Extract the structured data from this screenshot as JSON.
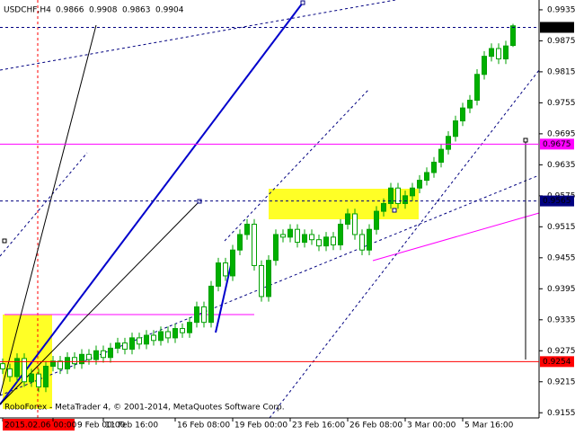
{
  "chart_data": {
    "type": "candlestick",
    "symbol": "USDCHF,H4",
    "header_ohlc": [
      0.9866,
      0.9908,
      0.9863,
      0.9904
    ],
    "footer": "RoboForex - MetaTrader 4, © 2001-2014, MetaQuotes Software Corp.",
    "categories": [
      "2015.02.06 00:00",
      null,
      null,
      null,
      null,
      null,
      null,
      "9 Feb 00:00",
      null,
      null,
      null,
      null,
      null,
      null,
      "11 Feb 16:00",
      null,
      null,
      null,
      null,
      null,
      null,
      null,
      null,
      null,
      "16 Feb 08:00",
      null,
      null,
      null,
      null,
      null,
      null,
      null,
      "19 Feb 00:00",
      null,
      null,
      null,
      null,
      null,
      null,
      null,
      "23 Feb 16:00",
      null,
      null,
      null,
      null,
      null,
      null,
      null,
      "26 Feb 08:00",
      null,
      null,
      null,
      null,
      null,
      null,
      null,
      "3 Mar 00:00",
      null,
      null,
      null,
      null,
      null,
      null,
      null,
      "5 Mar 16:00",
      null,
      null,
      null,
      null,
      null,
      null,
      null
    ],
    "open": [
      0.925,
      0.924,
      0.9225,
      0.926,
      0.9215,
      0.923,
      0.9205,
      0.9245,
      0.9255,
      0.924,
      0.9262,
      0.925,
      0.9268,
      0.9258,
      0.9275,
      0.9262,
      0.928,
      0.929,
      0.9278,
      0.93,
      0.9288,
      0.9305,
      0.9295,
      0.9312,
      0.93,
      0.9318,
      0.931,
      0.933,
      0.936,
      0.933,
      0.94,
      0.9445,
      0.942,
      0.947,
      0.95,
      0.952,
      0.944,
      0.938,
      0.945,
      0.95,
      0.9495,
      0.951,
      0.9485,
      0.95,
      0.949,
      0.9478,
      0.9495,
      0.948,
      0.952,
      0.954,
      0.95,
      0.947,
      0.951,
      0.9545,
      0.956,
      0.959,
      0.956,
      0.9575,
      0.959,
      0.9605,
      0.962,
      0.964,
      0.9665,
      0.969,
      0.972,
      0.9745,
      0.976,
      0.981,
      0.9845,
      0.986,
      0.984,
      0.9866
    ],
    "high": [
      0.926,
      0.925,
      0.927,
      0.927,
      0.924,
      0.924,
      0.9255,
      0.9265,
      0.9265,
      0.9272,
      0.9272,
      0.9278,
      0.9278,
      0.9285,
      0.9285,
      0.929,
      0.93,
      0.93,
      0.931,
      0.931,
      0.9315,
      0.9315,
      0.9322,
      0.9322,
      0.9328,
      0.9328,
      0.934,
      0.937,
      0.937,
      0.941,
      0.9455,
      0.9455,
      0.948,
      0.951,
      0.953,
      0.953,
      0.945,
      0.946,
      0.951,
      0.951,
      0.952,
      0.952,
      0.951,
      0.951,
      0.95,
      0.9505,
      0.9505,
      0.953,
      0.955,
      0.955,
      0.951,
      0.952,
      0.9555,
      0.957,
      0.96,
      0.96,
      0.9585,
      0.96,
      0.9615,
      0.963,
      0.965,
      0.9675,
      0.97,
      0.973,
      0.9755,
      0.977,
      0.982,
      0.9855,
      0.987,
      0.987,
      0.9875,
      0.9908
    ],
    "low": [
      0.923,
      0.9215,
      0.9215,
      0.9205,
      0.9205,
      0.9195,
      0.9195,
      0.9235,
      0.923,
      0.923,
      0.924,
      0.924,
      0.9248,
      0.9248,
      0.9252,
      0.9252,
      0.927,
      0.9268,
      0.9268,
      0.9278,
      0.9278,
      0.9285,
      0.9285,
      0.929,
      0.929,
      0.93,
      0.93,
      0.932,
      0.932,
      0.932,
      0.939,
      0.941,
      0.941,
      0.946,
      0.949,
      0.943,
      0.937,
      0.937,
      0.944,
      0.9485,
      0.9485,
      0.9475,
      0.9475,
      0.948,
      0.9468,
      0.9468,
      0.947,
      0.947,
      0.951,
      0.949,
      0.946,
      0.946,
      0.95,
      0.9535,
      0.955,
      0.955,
      0.955,
      0.9565,
      0.958,
      0.9595,
      0.961,
      0.963,
      0.9655,
      0.968,
      0.971,
      0.9735,
      0.975,
      0.98,
      0.9835,
      0.983,
      0.983,
      0.9863
    ],
    "close": [
      0.924,
      0.9225,
      0.926,
      0.9215,
      0.923,
      0.9205,
      0.9245,
      0.9255,
      0.924,
      0.9262,
      0.925,
      0.9268,
      0.9258,
      0.9275,
      0.9262,
      0.928,
      0.929,
      0.9278,
      0.93,
      0.9288,
      0.9305,
      0.9295,
      0.9312,
      0.93,
      0.9318,
      0.931,
      0.933,
      0.936,
      0.933,
      0.94,
      0.9445,
      0.942,
      0.947,
      0.95,
      0.952,
      0.944,
      0.938,
      0.945,
      0.95,
      0.9495,
      0.951,
      0.9485,
      0.95,
      0.949,
      0.9478,
      0.9495,
      0.948,
      0.952,
      0.954,
      0.95,
      0.947,
      0.951,
      0.9545,
      0.956,
      0.959,
      0.956,
      0.9575,
      0.959,
      0.9605,
      0.962,
      0.964,
      0.9665,
      0.969,
      0.972,
      0.9745,
      0.976,
      0.981,
      0.9845,
      0.986,
      0.984,
      0.9865,
      0.9904
    ],
    "up_color": "#00b000",
    "down_color": "#ffffff",
    "wick_color": "#00a000",
    "ylim": [
      0.9145,
      0.9954
    ],
    "yticks": [
      0.9935,
      0.9875,
      0.9815,
      0.9755,
      0.9695,
      0.9635,
      0.9575,
      0.9515,
      0.9455,
      0.9395,
      0.9335,
      0.9275,
      0.9215,
      0.9155
    ],
    "levels": [
      {
        "value": 0.9901,
        "color": "#000000",
        "line": "#000080",
        "dash": true
      },
      {
        "value": 0.9675,
        "color": "#ff00ff",
        "line": "#ff00ff",
        "dash": false
      },
      {
        "value": 0.9565,
        "color": "#000080",
        "line": "#000080",
        "dash": true
      },
      {
        "value": 0.9254,
        "color": "#ff0000",
        "line": "#ff0000",
        "dash": false
      }
    ]
  }
}
